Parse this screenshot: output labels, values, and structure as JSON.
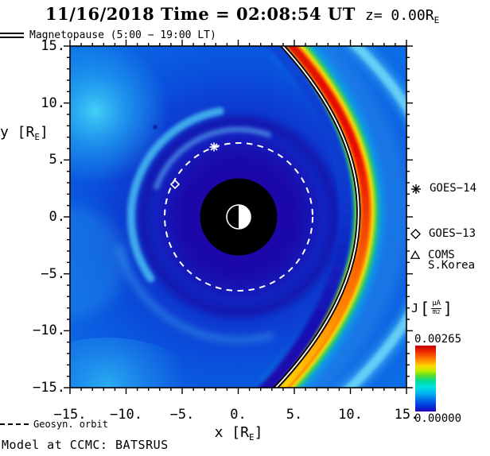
{
  "title": {
    "main": "11/16/2018 Time = 02:08:54 UT",
    "z_pre": "z= 0.00R",
    "z_sub": "E"
  },
  "magnetopause_legend": "Magnetopause (5:00 − 19:00 LT)",
  "axes": {
    "x_label_pre": "x [R",
    "x_label_sub": "E",
    "x_label_close": "]",
    "y_label_pre": "y [R",
    "y_label_sub": "E",
    "y_label_close": "]",
    "x_ticks": [
      "−15.",
      "−10.",
      "−5.",
      "0.",
      "5.",
      "10.",
      "15."
    ],
    "y_ticks": [
      "15.",
      "10.",
      "5.",
      "0.",
      "−5.",
      "−10.",
      "−15."
    ]
  },
  "satellites": {
    "goes14": "GOES−14",
    "goes13": "GOES−13",
    "coms_line1": "COMS",
    "coms_line2": "S.Korea"
  },
  "colorbar": {
    "quantity": "J",
    "bracket_open": "[",
    "unit_num": "μA",
    "unit_den": "m",
    "unit_den_exp": "2",
    "bracket_close": "]",
    "max": "0.00265",
    "min": "0.00000"
  },
  "footer": {
    "geosyn": "Geosyn. orbit",
    "model": "Model at CCMC: BATSRUS"
  },
  "chart_data": {
    "type": "heatmap",
    "title": "11/16/2018 Time = 02:08:54 UT z= 0.00RE",
    "xlabel": "x [RE]",
    "ylabel": "y [RE]",
    "xlim": [
      -15,
      15
    ],
    "ylim": [
      -15,
      15
    ],
    "x_ticks": [
      -15,
      -10,
      -5,
      0,
      5,
      10,
      15
    ],
    "y_ticks": [
      -15,
      -10,
      -5,
      0,
      5,
      10,
      15
    ],
    "grid": false,
    "legend_position": "right",
    "colorbar": {
      "label": "J [uA/m2]",
      "min": 0.0,
      "max": 0.00265,
      "colormap": "rainbow"
    },
    "overlays": {
      "magnetopause_trace": {
        "style": "black-white double line",
        "local_time_span": "5:00 - 19:00 LT",
        "subsolar_nose_x_re": 11.0
      },
      "geosync_orbit": {
        "style": "white dashed circle",
        "radius_re": 6.6
      },
      "inner_boundary": {
        "style": "black disc",
        "radius_re": 3.4
      },
      "earth": {
        "style": "half-lit circle, white dayside toward +x",
        "radius_re": 1.0
      }
    },
    "satellite_markers": [
      {
        "name": "GOES-14",
        "marker": "asterisk",
        "x_re": -2.2,
        "y_re": 6.1
      },
      {
        "name": "GOES-13",
        "marker": "diamond",
        "x_re": -5.6,
        "y_re": 2.9
      },
      {
        "name": "COMS S.Korea",
        "marker": "triangle",
        "x_re": null,
        "y_re": null
      }
    ],
    "field_features": [
      {
        "name": "magnetopause current peak",
        "description": "bright rainbow arc, red core near 0.00265 uA/m2, from (3.5,15) through nose (11,0) to (3,-15)"
      },
      {
        "name": "bow shock / sheath band",
        "description": "cyan arc outside magnetopause, crossing top near x=9.5 and right edge near y=9 and y=-9.5"
      },
      {
        "name": "inner magnetosphere",
        "description": "dark indigo low-current region inside r~8 RE with faint spiral wave arcs"
      },
      {
        "name": "dawn-side enhancement",
        "description": "soft cyan blobs near (-13,9.5) and the lower-left edge"
      }
    ]
  }
}
